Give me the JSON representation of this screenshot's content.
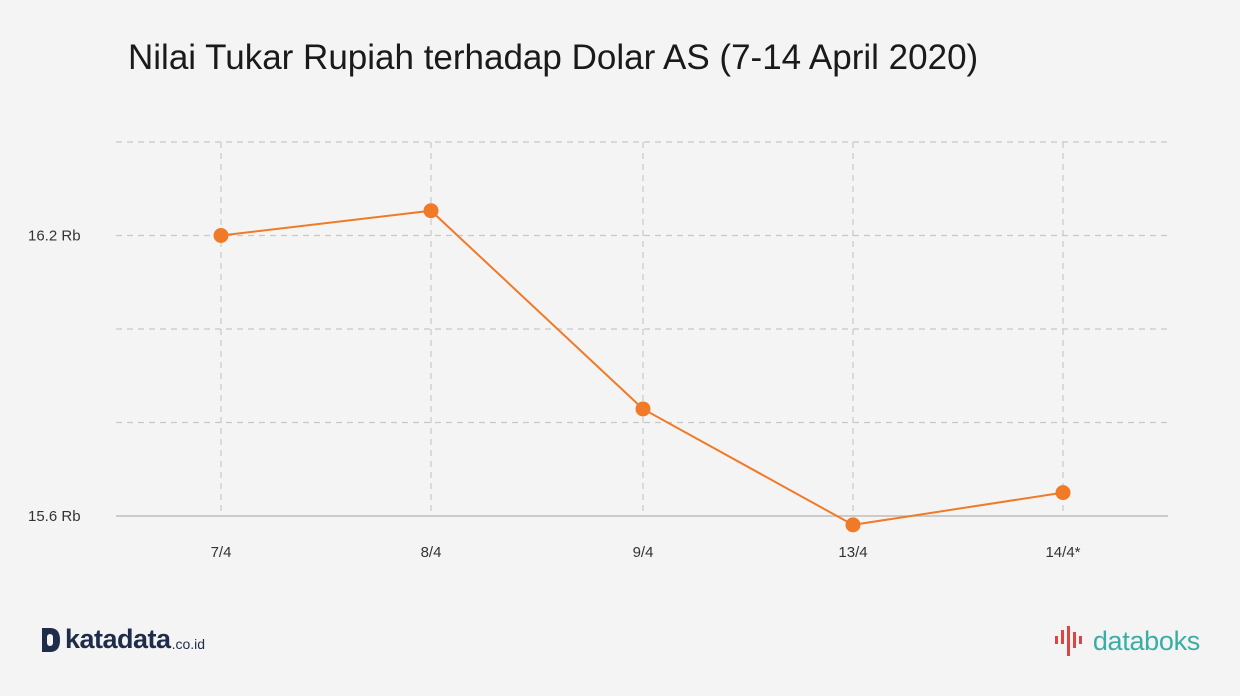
{
  "chart_data": {
    "type": "line",
    "title": "Nilai Tukar Rupiah terhadap Dolar AS (7-14 April 2020)",
    "categories": [
      "7/4",
      "8/4",
      "9/4",
      "13/4",
      "14/4*"
    ],
    "series": [
      {
        "values": [
          16200,
          16253,
          15829,
          15581,
          15650
        ]
      }
    ],
    "ylim": [
      15600,
      16400
    ],
    "yticks": [
      {
        "value": 15600,
        "label": "15.6 Rb"
      },
      {
        "value": 15800,
        "label": ""
      },
      {
        "value": 16000,
        "label": ""
      },
      {
        "value": 16200,
        "label": "16.2 Rb"
      },
      {
        "value": 16400,
        "label": ""
      }
    ],
    "grid": true,
    "line_color": "#f07a28"
  },
  "footer": {
    "left_logo": {
      "word": "katadata",
      "suffix": ".co.id",
      "color": "#1f2d4a"
    },
    "right_logo": {
      "word": "databoks",
      "color": "#3aaea4",
      "accent": "#e0443c"
    }
  }
}
